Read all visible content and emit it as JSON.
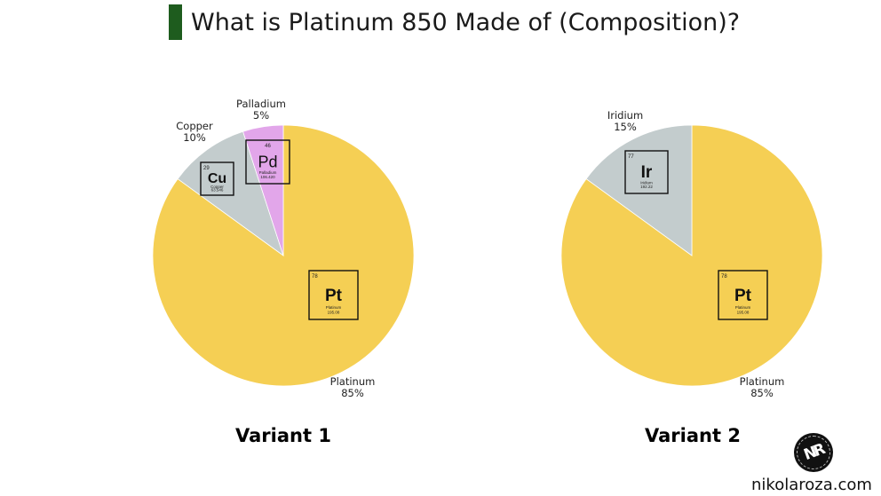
{
  "header": {
    "title": "What is Platinum 850 Made of (Composition)?"
  },
  "chart_data": [
    {
      "type": "pie",
      "title": "Variant 1",
      "slices": [
        {
          "label": "Platinum",
          "value": 85,
          "value_label": "85%",
          "color": "#f5cf54",
          "element": {
            "number": "78",
            "symbol": "Pt",
            "name": "Platinum",
            "mass": "195.08"
          }
        },
        {
          "label": "Copper",
          "value": 10,
          "value_label": "10%",
          "color": "#c3cccd",
          "element": {
            "number": "29",
            "symbol": "Cu",
            "name": "Copper",
            "mass": "63.546"
          }
        },
        {
          "label": "Palladium",
          "value": 5,
          "value_label": "5%",
          "color": "#e2a6ea",
          "element": {
            "number": "46",
            "symbol": "Pd",
            "name": "Palladium",
            "mass": "106.420"
          }
        }
      ]
    },
    {
      "type": "pie",
      "title": "Variant 2",
      "slices": [
        {
          "label": "Platinum",
          "value": 85,
          "value_label": "85%",
          "color": "#f5cf54",
          "element": {
            "number": "78",
            "symbol": "Pt",
            "name": "Platinum",
            "mass": "195.08"
          }
        },
        {
          "label": "Iridium",
          "value": 15,
          "value_label": "15%",
          "color": "#c3cccd",
          "element": {
            "number": "77",
            "symbol": "Ir",
            "name": "Iridium",
            "mass": "192.22"
          }
        }
      ]
    }
  ],
  "footer": {
    "logo_text": "NR",
    "site": "nikolaroza.com"
  }
}
